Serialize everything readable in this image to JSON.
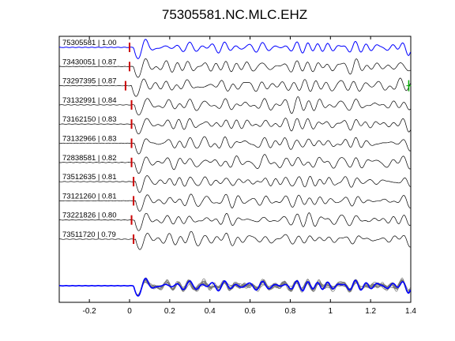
{
  "chart_data": {
    "type": "line",
    "title": "75305581.NC.MLC.EHZ",
    "xlabel": "",
    "ylabel": "",
    "xlim": [
      -0.35,
      1.4
    ],
    "xticks": [
      -0.2,
      0,
      0.2,
      0.4,
      0.6,
      0.8,
      1,
      1.2,
      1.4
    ],
    "xtick_labels": [
      "-0.2",
      "0",
      "0.2",
      "0.4",
      "0.6",
      "0.8",
      "1",
      "1.2",
      "1.4"
    ],
    "grid": false,
    "colors": {
      "master_trace": "#0000ff",
      "trace": "#000000",
      "pick_marker": "#cc0000",
      "alt_pick_marker": "#00aa00",
      "stack_overlay": "#777777"
    },
    "traces": [
      {
        "label": "75305581 | 1.00",
        "event_id": "75305581",
        "correlation": 1.0,
        "pick_time": 0.0,
        "master": true
      },
      {
        "label": "73430051 | 0.87",
        "event_id": "73430051",
        "correlation": 0.87,
        "pick_time": 0.0
      },
      {
        "label": "73297395 | 0.87",
        "event_id": "73297395",
        "correlation": 0.87,
        "pick_time": -0.02,
        "alt_pick_time": 1.39
      },
      {
        "label": "73132991 | 0.84",
        "event_id": "73132991",
        "correlation": 0.84,
        "pick_time": 0.01
      },
      {
        "label": "73162150 | 0.83",
        "event_id": "73162150",
        "correlation": 0.83,
        "pick_time": 0.01
      },
      {
        "label": "73132966 | 0.83",
        "event_id": "73132966",
        "correlation": 0.83,
        "pick_time": 0.01
      },
      {
        "label": "72838581 | 0.82",
        "event_id": "72838581",
        "correlation": 0.82,
        "pick_time": 0.01
      },
      {
        "label": "73512635 | 0.81",
        "event_id": "73512635",
        "correlation": 0.81,
        "pick_time": 0.02
      },
      {
        "label": "73121260 | 0.81",
        "event_id": "73121260",
        "correlation": 0.81,
        "pick_time": 0.02
      },
      {
        "label": "73221826 | 0.80",
        "event_id": "73221826",
        "correlation": 0.8,
        "pick_time": 0.01
      },
      {
        "label": "73511720 | 0.79",
        "event_id": "73511720",
        "correlation": 0.79,
        "pick_time": 0.02
      }
    ],
    "stack": {
      "overlay_count": 10
    }
  }
}
